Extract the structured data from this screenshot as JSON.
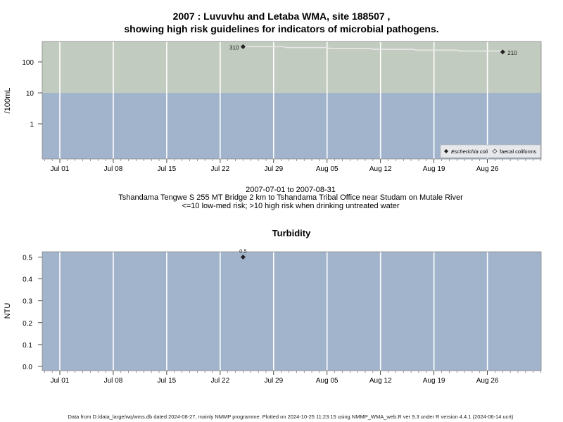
{
  "chart1": {
    "title_line1": "2007 : Luvuvhu and Letaba WMA, site 188507 ,",
    "title_line2": "showing high risk guidelines for indicators of microbial pathogens.",
    "ylabel": "/100mL",
    "y_ticks": [
      "1",
      "10",
      "100"
    ],
    "x_ticks": [
      "Jul 01",
      "Jul 08",
      "Jul 15",
      "Jul 22",
      "Jul 29",
      "Aug 05",
      "Aug 12",
      "Aug 19",
      "Aug 26"
    ],
    "legend": {
      "item1": "Escherichia coli",
      "item2": "faecal coliforms"
    },
    "colors": {
      "low_risk_band": "#a2b3cc",
      "high_risk_band": "#c2cbbf",
      "line": "#e8e8e8"
    }
  },
  "middle": {
    "line1": "2007-07-01 to 2007-08-31",
    "line2": "Tshandama Tengwe S 255 MT Bridge 2 km to Tshandama Tribal Office near Studam on Mutale River",
    "line3": "<=10 low-med risk; >10 high risk when drinking untreated water"
  },
  "chart2": {
    "title": "Turbidity",
    "ylabel": "NTU",
    "y_ticks": [
      "0.0",
      "0.1",
      "0.2",
      "0.3",
      "0.4",
      "0.5"
    ],
    "x_ticks": [
      "Jul 01",
      "Jul 08",
      "Jul 15",
      "Jul 22",
      "Jul 29",
      "Aug 05",
      "Aug 12",
      "Aug 19",
      "Aug 26"
    ],
    "colors": {
      "background": "#a2b3cc"
    }
  },
  "footer": "Data from D:/data_large/wq/wms.db dated 2024-08-27, mainly NMMP programme. Plotted on 2024-10-25 11:23:15 using NMMP_WMA_web.R ver 9.3 under R version 4.4.1 (2024-06-14 ucrt)",
  "chart_data": [
    {
      "type": "line",
      "title": "2007 : Luvuvhu and Letaba WMA, site 188507 , showing high risk guidelines for indicators of microbial pathogens.",
      "ylabel": "/100mL",
      "y_scale": "log",
      "threshold": 10,
      "series": [
        {
          "name": "Escherichia coli",
          "x": [
            "2007-07-25",
            "2007-08-28"
          ],
          "values": [
            310,
            210
          ],
          "labels": [
            "310",
            "210"
          ]
        }
      ],
      "xlim": [
        "2007-06-29",
        "2007-09-02"
      ],
      "legend_position": "bottom-right",
      "grid": true
    },
    {
      "type": "scatter",
      "title": "Turbidity",
      "ylabel": "NTU",
      "series": [
        {
          "x": [
            "2007-07-25"
          ],
          "values": [
            0.5
          ],
          "labels": [
            "0.5"
          ]
        }
      ],
      "ylim": [
        0,
        0.5
      ],
      "xlim": [
        "2007-06-29",
        "2007-09-02"
      ],
      "grid": true
    }
  ]
}
